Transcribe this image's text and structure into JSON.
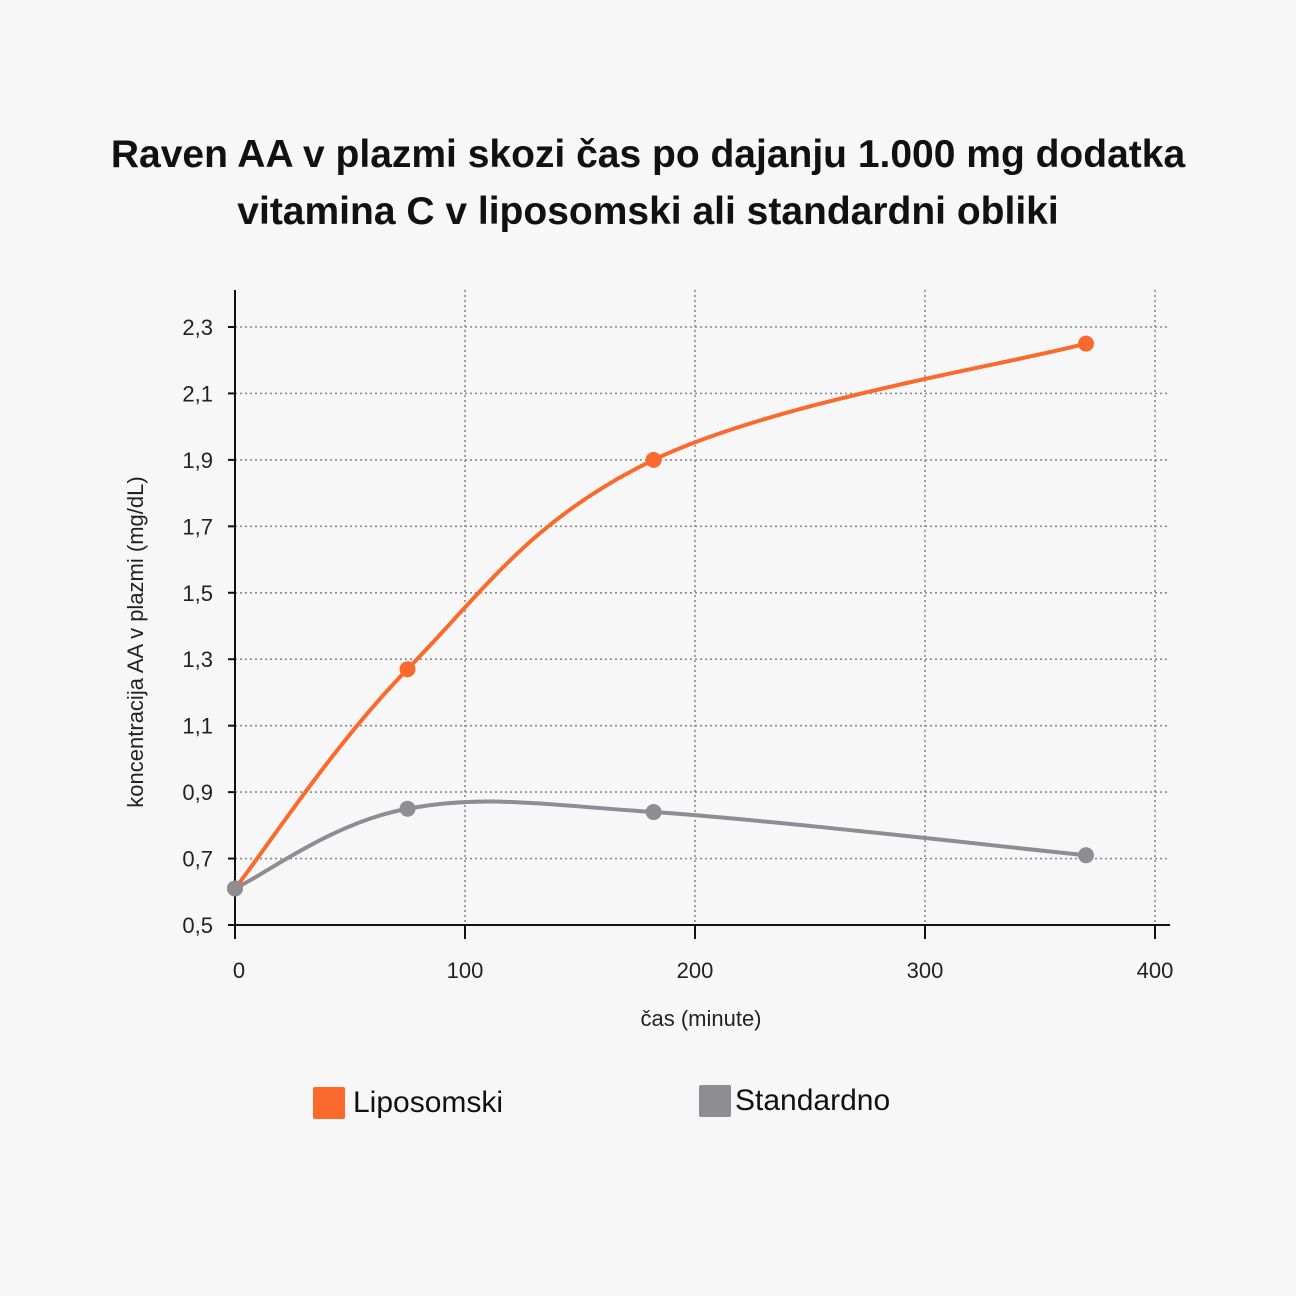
{
  "title": {
    "line1": "Raven AA v plazmi skozi čas po dajanju 1.000 mg dodatka",
    "line2": "vitamina C v liposomski ali standardni obliki"
  },
  "chart_data": {
    "type": "line",
    "xlabel": "čas (minute)",
    "ylabel": "koncentracija AA v plazmi (mg/dL)",
    "xlim": [
      0,
      400
    ],
    "ylim": [
      0.5,
      2.4
    ],
    "xticks": [
      0,
      100,
      200,
      300,
      400
    ],
    "xtick_labels": [
      "0",
      "100",
      "200",
      "300",
      "400"
    ],
    "yticks": [
      0.5,
      0.7,
      0.9,
      1.1,
      1.3,
      1.5,
      1.7,
      1.9,
      2.1,
      2.3
    ],
    "ytick_labels": [
      "0,5",
      "0,7",
      "0,9",
      "1,1",
      "1,3",
      "1,5",
      "1,7",
      "1,9",
      "2,1",
      "2,3"
    ],
    "grid": true,
    "legend_position": "bottom",
    "series": [
      {
        "name": "Liposomski",
        "color": "#fb6a2c",
        "x": [
          0,
          75,
          182,
          370
        ],
        "y": [
          0.61,
          1.27,
          1.9,
          2.25
        ]
      },
      {
        "name": "Standardno",
        "color": "#8e8d92",
        "x": [
          0,
          75,
          182,
          370
        ],
        "y": [
          0.61,
          0.85,
          0.84,
          0.71
        ]
      }
    ]
  }
}
